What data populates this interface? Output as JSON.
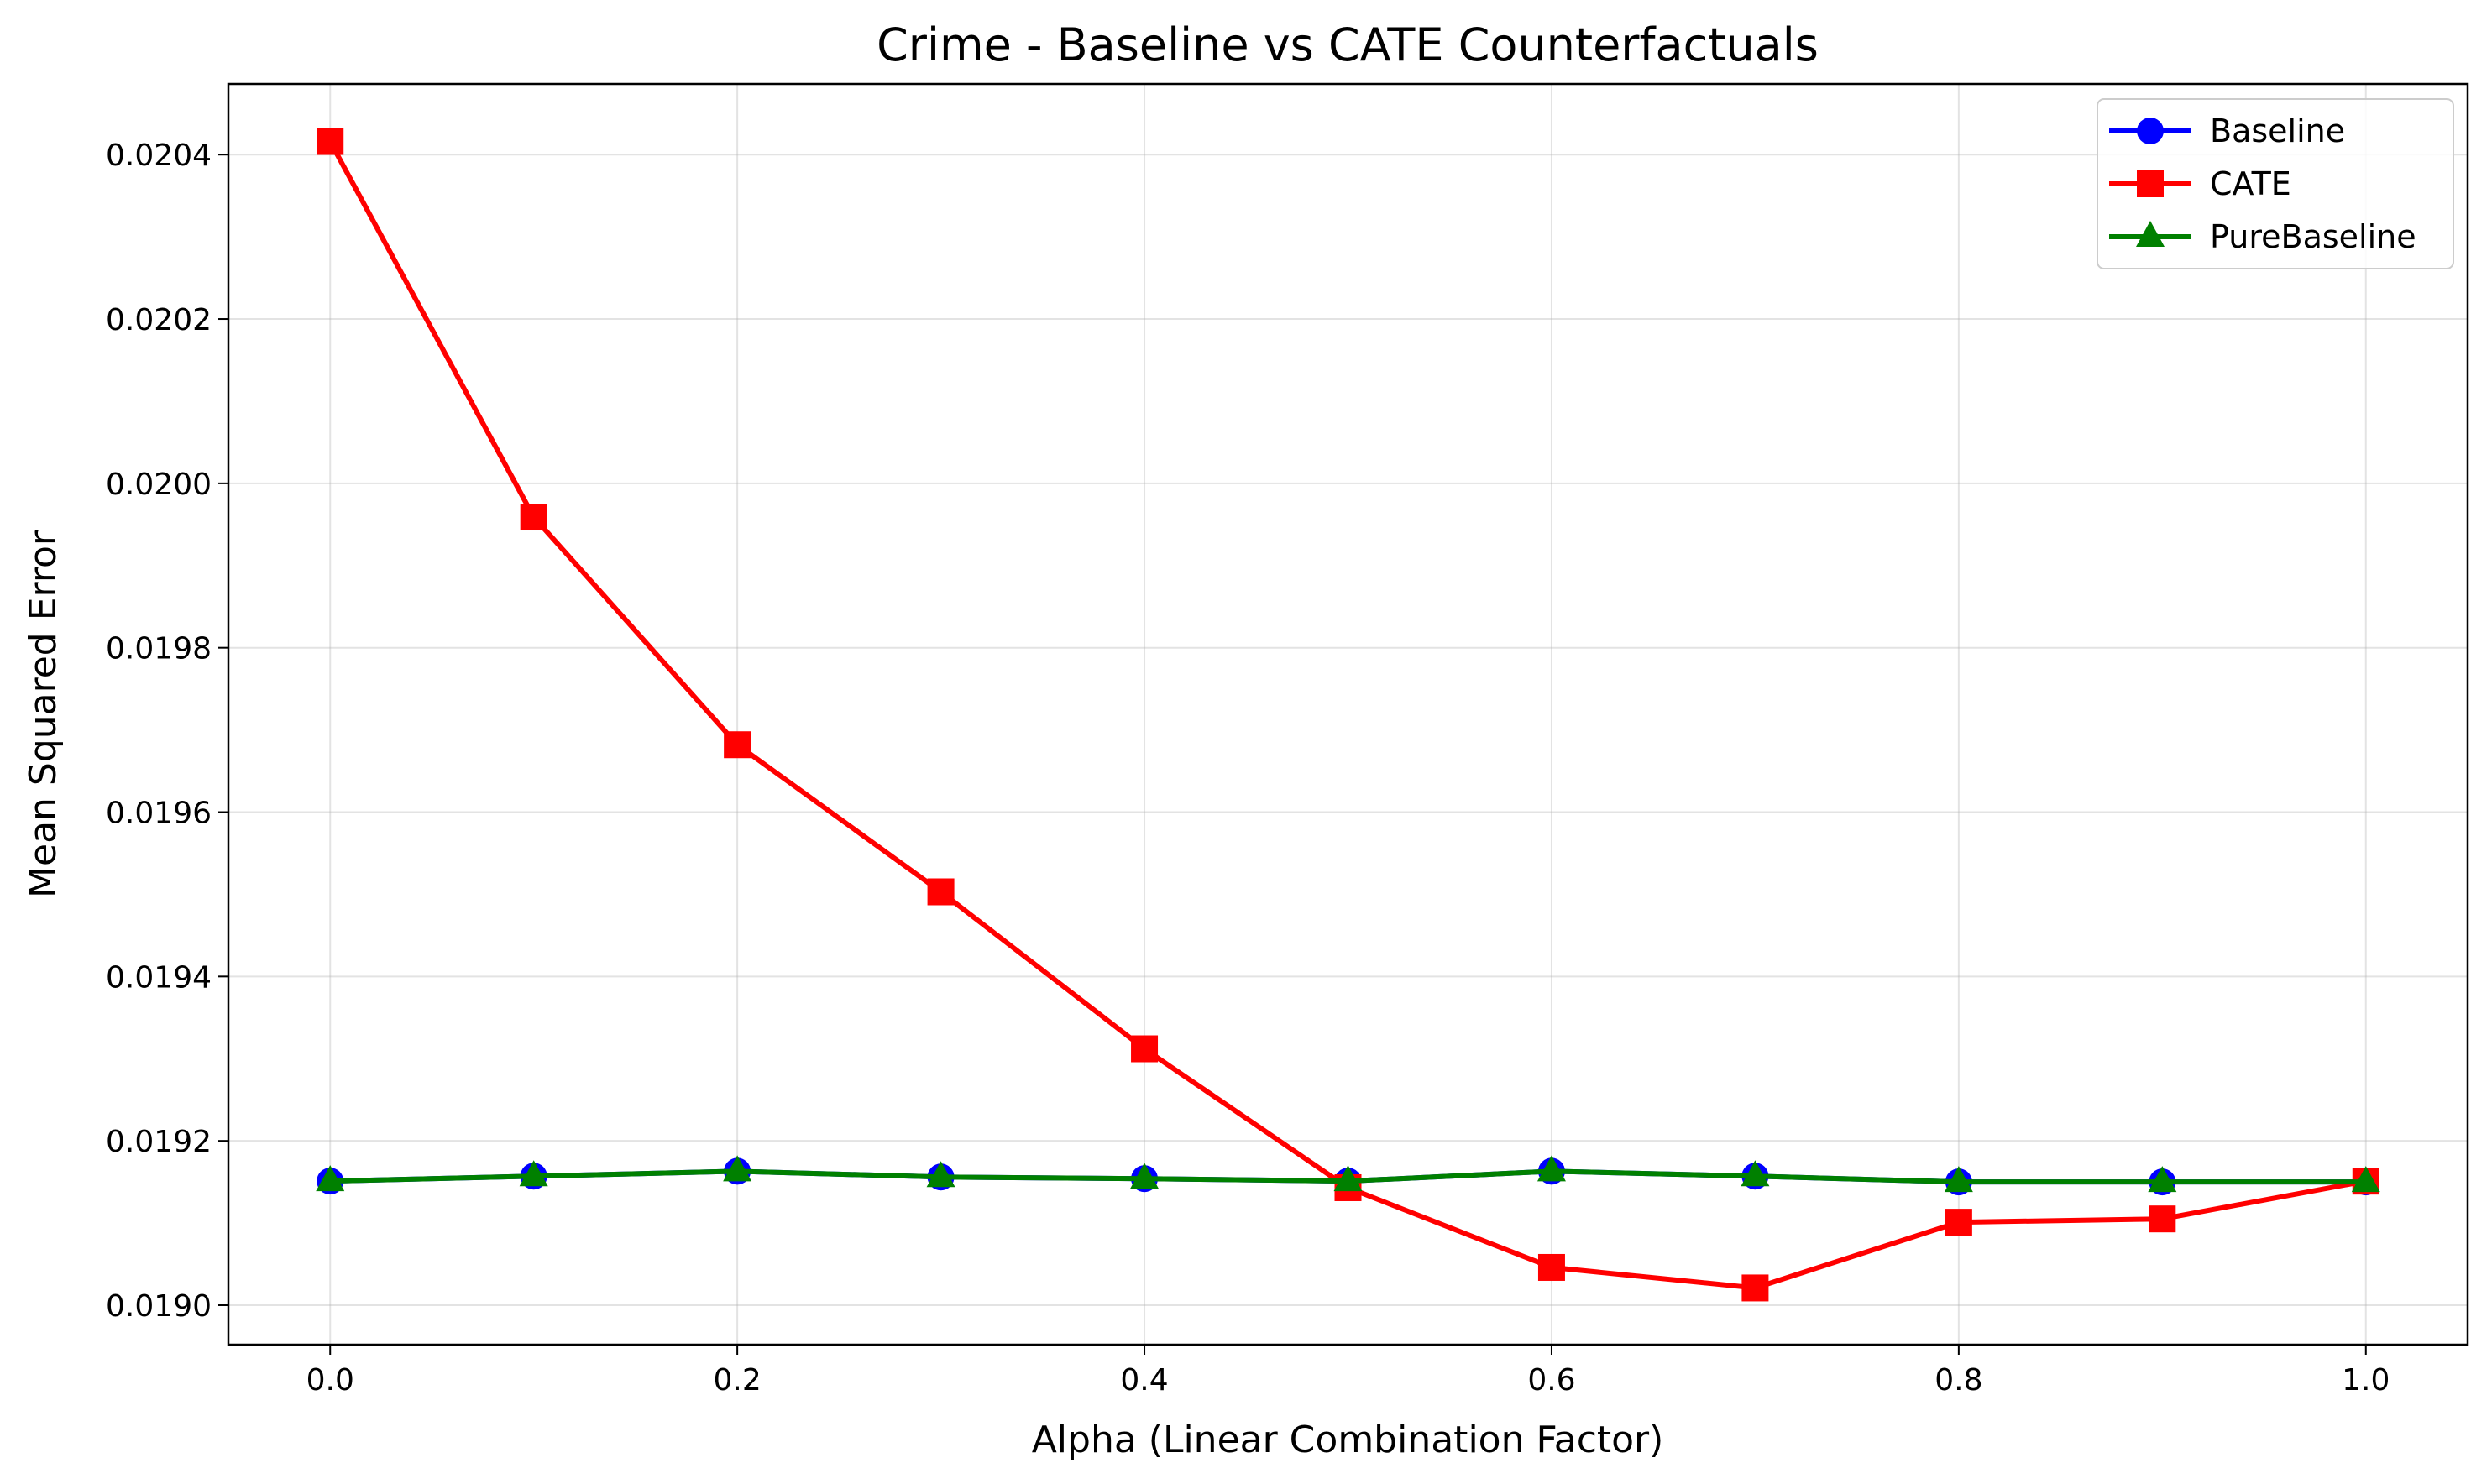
{
  "chart_data": {
    "type": "line",
    "title": "Crime - Baseline vs CATE Counterfactuals",
    "xlabel": "Alpha (Linear Combination Factor)",
    "ylabel": "Mean Squared Error",
    "x": [
      0.0,
      0.1,
      0.2,
      0.3,
      0.4,
      0.5,
      0.6,
      0.7,
      0.8,
      0.9,
      1.0
    ],
    "xlim": [
      -0.05,
      1.05
    ],
    "ylim": [
      0.018952,
      0.020486
    ],
    "xticks": [
      0.0,
      0.2,
      0.4,
      0.6,
      0.8,
      1.0
    ],
    "xtick_labels": [
      "0.0",
      "0.2",
      "0.4",
      "0.6",
      "0.8",
      "1.0"
    ],
    "yticks": [
      0.019,
      0.0192,
      0.0194,
      0.0196,
      0.0198,
      0.02,
      0.0202,
      0.0204
    ],
    "ytick_labels": [
      "0.0190",
      "0.0192",
      "0.0194",
      "0.0196",
      "0.0198",
      "0.0200",
      "0.0202",
      "0.0204"
    ],
    "grid": true,
    "legend_position": "top-right",
    "series": [
      {
        "name": "Baseline",
        "color": "#0000ff",
        "marker": "circle",
        "values": [
          0.019151,
          0.019157,
          0.019163,
          0.019156,
          0.019154,
          0.019151,
          0.019163,
          0.019157,
          0.01915,
          0.01915,
          0.01915
        ]
      },
      {
        "name": "CATE",
        "color": "#ff0000",
        "marker": "square",
        "values": [
          0.020416,
          0.019959,
          0.019682,
          0.019503,
          0.019312,
          0.019143,
          0.019046,
          0.019021,
          0.019101,
          0.019105,
          0.019151
        ]
      },
      {
        "name": "PureBaseline",
        "color": "#008000",
        "marker": "triangle",
        "values": [
          0.019151,
          0.019157,
          0.019163,
          0.019156,
          0.019154,
          0.019151,
          0.019163,
          0.019157,
          0.01915,
          0.01915,
          0.01915
        ]
      }
    ]
  }
}
